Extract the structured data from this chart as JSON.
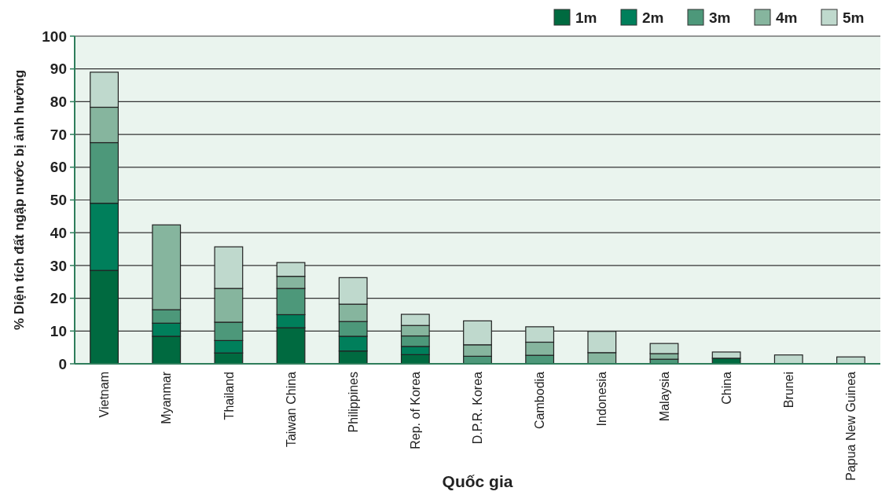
{
  "chart_data": {
    "type": "bar",
    "stacked": true,
    "xlabel": "Quốc gia",
    "ylabel": "% Diện tích đất ngập nước bị ảnh hưởng",
    "categories": [
      "Vietnam",
      "Myanmar",
      "Thailand",
      "Taiwan China",
      "Philippines",
      "Rep. of Korea",
      "D.P.R. Korea",
      "Cambodia",
      "Indonesia",
      "Malaysia",
      "China",
      "Brunei",
      "Papua New Guinea"
    ],
    "series": [
      {
        "name": "1m",
        "color": "#006a40",
        "values": [
          28.5,
          8.4,
          3.3,
          11,
          3.9,
          2.8,
          null,
          null,
          null,
          null,
          1.7,
          null,
          null
        ]
      },
      {
        "name": "2m",
        "color": "#007f5b",
        "values": [
          20.5,
          4,
          3.8,
          4,
          4.5,
          2.5,
          null,
          null,
          null,
          null,
          null,
          null,
          null
        ]
      },
      {
        "name": "3m",
        "color": "#4d987a",
        "values": [
          18.5,
          4.1,
          5.6,
          8,
          4.5,
          3.2,
          2.3,
          2.6,
          null,
          1.4,
          null,
          null,
          null
        ]
      },
      {
        "name": "4m",
        "color": "#86b59e",
        "values": [
          10.8,
          25.9,
          10.3,
          3.7,
          5.3,
          3.2,
          3.5,
          4,
          3.4,
          1.7,
          null,
          null,
          null
        ]
      },
      {
        "name": "5m",
        "color": "#bfd9cd",
        "values": [
          10.7,
          null,
          12.7,
          4.2,
          8.1,
          3.4,
          7.3,
          4.7,
          6.5,
          3.1,
          1.9,
          2.7,
          2.1
        ]
      }
    ],
    "ylim": [
      0,
      100
    ],
    "yticks": [
      0,
      10,
      20,
      30,
      40,
      50,
      60,
      70,
      80,
      90,
      100
    ],
    "grid": "y",
    "legend": "top right"
  }
}
